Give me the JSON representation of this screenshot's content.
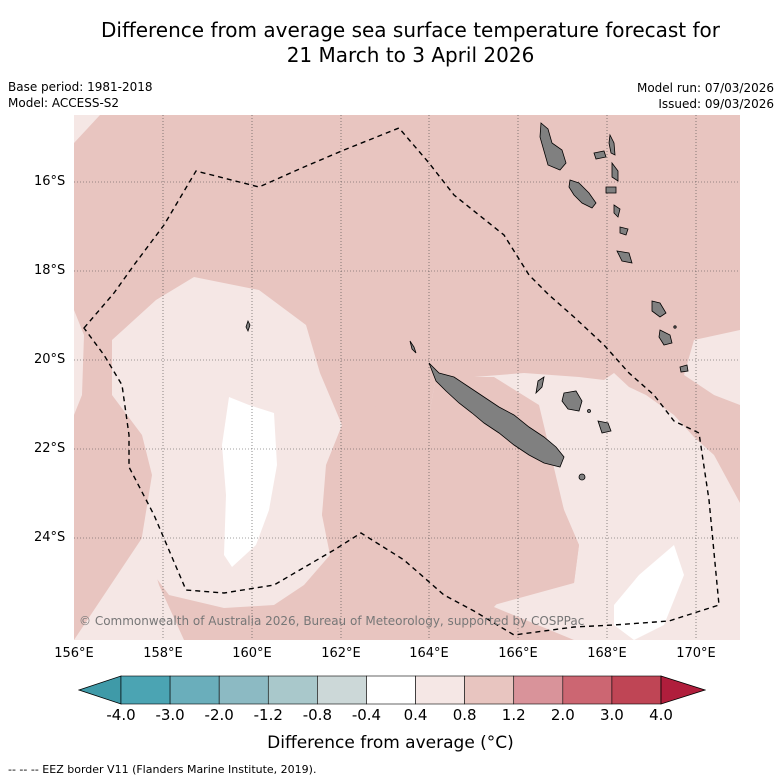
{
  "title_line1": "Difference from average sea surface temperature forecast for",
  "title_line2": "21 March to 3 April 2026",
  "base_period": "Base period: 1981-2018",
  "model": "Model: ACCESS-S2",
  "model_run": "Model run: 07/03/2026",
  "issued": "Issued: 09/03/2026",
  "lat_labels": [
    "16°S",
    "18°S",
    "20°S",
    "22°S",
    "24°S"
  ],
  "lon_labels": [
    "156°E",
    "158°E",
    "160°E",
    "162°E",
    "164°E",
    "166°E",
    "168°E",
    "170°E"
  ],
  "copyright": "© Commonwealth of Australia 2026, Bureau of Meteorology, supported by COSPPac",
  "colorbar": {
    "ticks": [
      "-4.0",
      "-3.0",
      "-2.0",
      "-1.2",
      "-0.8",
      "-0.4",
      "0.4",
      "0.8",
      "1.2",
      "2.0",
      "3.0",
      "4.0"
    ],
    "colors": [
      "#3f9aa8",
      "#4ba4b3",
      "#6aaebb",
      "#8cbac3",
      "#a9c8cb",
      "#ccd8d8",
      "#ffffff",
      "#f5e7e5",
      "#e8c5c0",
      "#d9939a",
      "#cc6672",
      "#bf4555",
      "#b01e3c"
    ],
    "label": "Difference from average (°C)"
  },
  "map_colors": {
    "anomaly_0_8_to_1_2": "#e8c5c0",
    "anomaly_0_4_to_0_8": "#f5e7e5",
    "anomaly_neg0_4_to_0_4": "#ffffff",
    "land": "#808080"
  },
  "legend_text": "--  --  -- EEZ border V11 (Flanders Marine Institute, 2019)."
}
